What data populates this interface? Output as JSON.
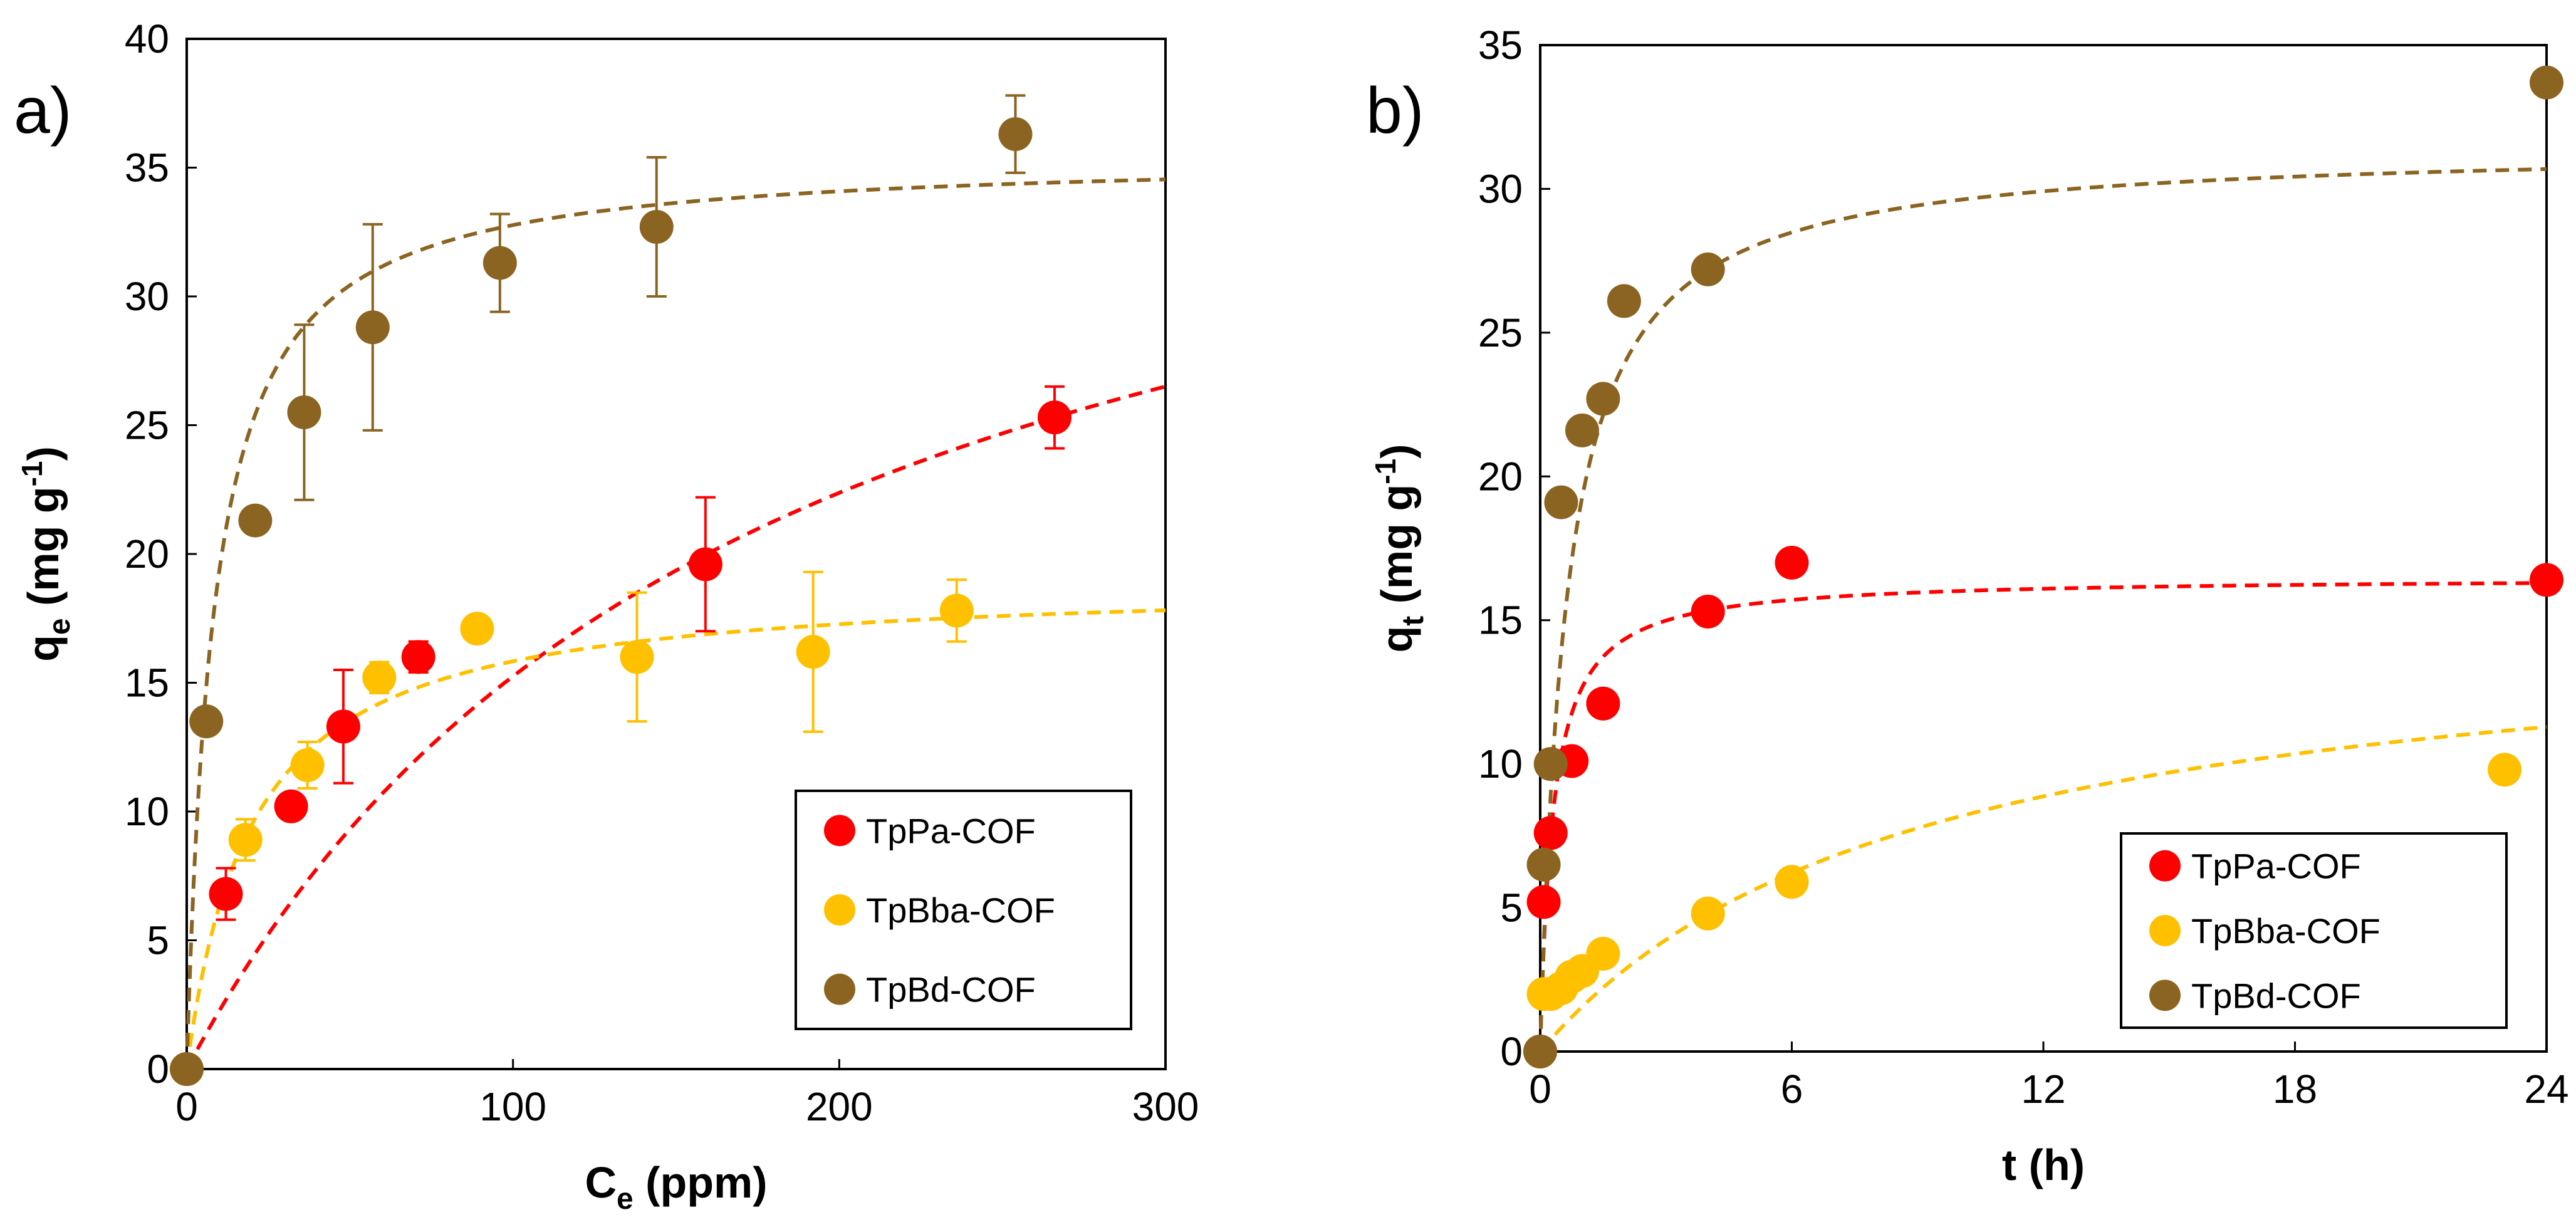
{
  "chart_data": [
    {
      "type": "scatter",
      "panel_label": "a)",
      "xlabel": {
        "main": "C",
        "sub": "e",
        "rest": " (ppm)"
      },
      "ylabel": {
        "main": "q",
        "sub": "e",
        "rest": " (mg g",
        "sup": "-1",
        "end": ")"
      },
      "xlim": [
        0,
        300
      ],
      "ylim": [
        0,
        40
      ],
      "xticks": [
        0,
        100,
        200,
        300
      ],
      "yticks": [
        0,
        5,
        10,
        15,
        20,
        25,
        30,
        35,
        40
      ],
      "grid": false,
      "legend_position": "bottom-right",
      "fit_model": "langmuir",
      "series": [
        {
          "name": "TpPa-COF",
          "color": "#FF0000",
          "points": [
            {
              "x": 0,
              "y": 0
            },
            {
              "x": 12,
              "y": 6.8,
              "err": 1.0
            },
            {
              "x": 32,
              "y": 10.2
            },
            {
              "x": 48,
              "y": 13.3,
              "err": 2.2
            },
            {
              "x": 71,
              "y": 16.0,
              "err": 0.6
            },
            {
              "x": 159,
              "y": 19.6,
              "err": 2.6
            },
            {
              "x": 266,
              "y": 25.3,
              "err": 1.2
            }
          ],
          "fit": {
            "qmax": 42,
            "K": 0.0057
          }
        },
        {
          "name": "TpBba-COF",
          "color": "#FFC000",
          "points": [
            {
              "x": 0,
              "y": 0
            },
            {
              "x": 18,
              "y": 8.9,
              "err": 0.8
            },
            {
              "x": 37,
              "y": 11.8,
              "err": 0.9
            },
            {
              "x": 59,
              "y": 15.2,
              "err": 0.6
            },
            {
              "x": 89,
              "y": 17.1
            },
            {
              "x": 138,
              "y": 16.0,
              "err": 2.5
            },
            {
              "x": 192,
              "y": 16.2,
              "err": 3.1
            },
            {
              "x": 236,
              "y": 17.8,
              "err": 1.2
            }
          ],
          "fit": {
            "qmax": 19,
            "K": 0.05
          }
        },
        {
          "name": "TpBd-COF",
          "color": "#8B6421",
          "points": [
            {
              "x": 0,
              "y": 0
            },
            {
              "x": 6,
              "y": 13.5
            },
            {
              "x": 21,
              "y": 21.3
            },
            {
              "x": 36,
              "y": 25.5,
              "err": 3.4
            },
            {
              "x": 57,
              "y": 28.8,
              "err": 4.0
            },
            {
              "x": 96,
              "y": 31.3,
              "err": 1.9
            },
            {
              "x": 144,
              "y": 32.7,
              "err": 2.7
            },
            {
              "x": 254,
              "y": 36.3,
              "err": 1.5
            }
          ],
          "fit": {
            "qmax": 35.5,
            "K": 0.12
          }
        }
      ]
    },
    {
      "type": "scatter",
      "panel_label": "b)",
      "xlabel": {
        "main": "t (h)",
        "sub": "",
        "rest": ""
      },
      "ylabel": {
        "main": "q",
        "sub": "t",
        "rest": " (mg g",
        "sup": "-1",
        "end": ")"
      },
      "xlim": [
        0,
        24
      ],
      "ylim": [
        0,
        35
      ],
      "xticks": [
        0,
        6,
        12,
        18,
        24
      ],
      "yticks": [
        0,
        5,
        10,
        15,
        20,
        25,
        30,
        35
      ],
      "grid": false,
      "legend_position": "bottom-right",
      "fit_model": "pseudo-second-order",
      "series": [
        {
          "name": "TpPa-COF",
          "color": "#FF0000",
          "points": [
            {
              "x": 0,
              "y": 0
            },
            {
              "x": 0.083,
              "y": 5.2
            },
            {
              "x": 0.25,
              "y": 7.6
            },
            {
              "x": 0.75,
              "y": 10.1
            },
            {
              "x": 1.5,
              "y": 12.1
            },
            {
              "x": 4,
              "y": 15.3
            },
            {
              "x": 6,
              "y": 17.0
            },
            {
              "x": 24,
              "y": 16.4
            }
          ],
          "fit": {
            "qe": 16.5,
            "k": 0.2
          }
        },
        {
          "name": "TpBba-COF",
          "color": "#FFC000",
          "points": [
            {
              "x": 0.083,
              "y": 2.0
            },
            {
              "x": 0.25,
              "y": 2.0
            },
            {
              "x": 0.5,
              "y": 2.2
            },
            {
              "x": 0.75,
              "y": 2.6
            },
            {
              "x": 1.0,
              "y": 2.8
            },
            {
              "x": 1.5,
              "y": 3.4
            },
            {
              "x": 4,
              "y": 4.8
            },
            {
              "x": 6,
              "y": 5.9
            },
            {
              "x": 23,
              "y": 9.8
            }
          ],
          "fit": {
            "qe": 15.5,
            "k": 0.0072
          }
        },
        {
          "name": "TpBd-COF",
          "color": "#8B6421",
          "points": [
            {
              "x": 0,
              "y": 0
            },
            {
              "x": 0.083,
              "y": 6.5
            },
            {
              "x": 0.25,
              "y": 10.0
            },
            {
              "x": 0.5,
              "y": 19.1
            },
            {
              "x": 1.0,
              "y": 21.6
            },
            {
              "x": 1.5,
              "y": 22.7
            },
            {
              "x": 2.0,
              "y": 26.1
            },
            {
              "x": 4.0,
              "y": 27.2
            },
            {
              "x": 24,
              "y": 33.7
            }
          ],
          "fit": {
            "qe": 31.5,
            "k": 0.05
          }
        }
      ]
    }
  ]
}
